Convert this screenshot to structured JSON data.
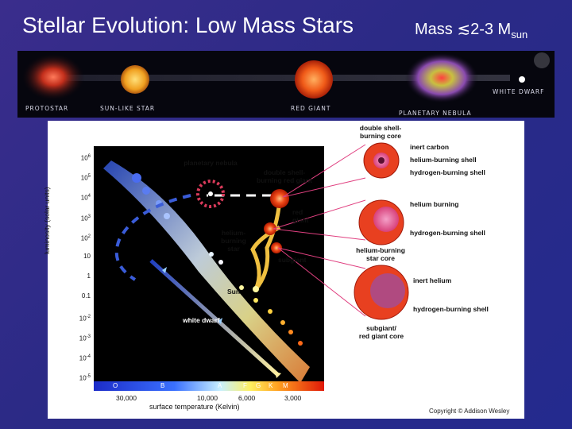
{
  "slide": {
    "title": "Stellar Evolution: Low Mass Stars",
    "mass_prefix": "Mass ≲2-3 M",
    "mass_sub": "sun"
  },
  "strip": {
    "protostar": "PROTOSTAR",
    "sunlike": "SUN-LIKE STAR",
    "redgiant": "RED GIANT",
    "nebula": "PLANETARY NEBULA",
    "whitedwarf": "WHITE DWARF"
  },
  "diagram": {
    "ylabel": "luminosity (solar units)",
    "xlabel": "surface temperature (Kelvin)",
    "y_ticks": [
      "10^6",
      "10^5",
      "10^4",
      "10^3",
      "10^2",
      "10",
      "1",
      "0.1",
      "10^-2",
      "10^-3",
      "10^-4",
      "10^-5"
    ],
    "spectral": [
      "O",
      "B",
      "A",
      "F",
      "G",
      "K",
      "M"
    ],
    "temps": [
      "30,000",
      "10,000",
      "6,000",
      "3,000"
    ],
    "labels": {
      "planetary_nebula": "planetary nebula",
      "double_shell_giant": "double shell-\nburning red giant",
      "red_giant": "red\ngiant",
      "helium_burning_star": "helium-\nburning\nstar",
      "subgiant": "subgiant",
      "sun": "Sun",
      "white_dwarf": "white dwarf"
    },
    "cores": {
      "double_shell_title": "double shell-\nburning core",
      "inert_carbon": "inert carbon",
      "helium_burning_shell": "helium-burning shell",
      "hydrogen_burning_shell_1": "hydrogen-burning shell",
      "helium_burning": "helium burning",
      "hydrogen_burning_shell_2": "hydrogen-burning shell",
      "helium_star_core": "helium-burning\nstar core",
      "inert_helium": "inert helium",
      "hydrogen_burning_shell_3": "hydrogen-burning shell",
      "subgiant_core": "subgiant/\nred giant core"
    },
    "copyright": "Copyright © Addison Wesley"
  },
  "colors": {
    "background": "#2e2b8a",
    "red_giant": "#e8401c",
    "core_pink": "#e27aa8",
    "white_dwarf_path": "#7fb6ff"
  }
}
